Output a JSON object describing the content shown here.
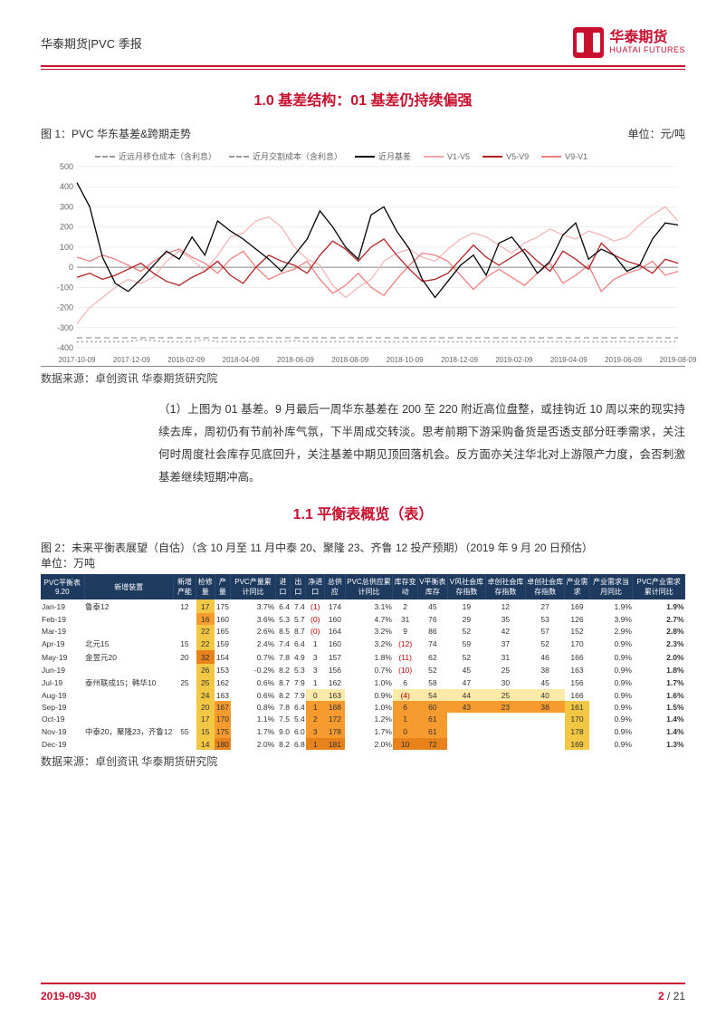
{
  "header": {
    "left": "华泰期货|PVC 季报",
    "logo_cn": "华泰期货",
    "logo_en": "HUATAI FUTURES"
  },
  "section1_title": "1.0 基差结构：01 基差仍持续偏强",
  "fig1": {
    "caption": "图 1：PVC 华东基差&跨期走势",
    "unit": "单位：元/吨",
    "source": "数据来源：卓创资讯 华泰期货研究院",
    "legend": [
      "近远月移仓成本（含利息）",
      "近月交割成本（含利息）",
      "近月基差",
      "V1-V5",
      "V5-V9",
      "V9-V1"
    ],
    "legend_colors": [
      "#999999",
      "#999999",
      "#000000",
      "#f2a6a6",
      "#b22222",
      "#f08080"
    ],
    "legend_dash": [
      "6,4",
      "2,3",
      "0",
      "0",
      "0",
      "0"
    ],
    "ylim": [
      -400,
      500
    ],
    "yticks": [
      -400,
      -300,
      -200,
      -100,
      0,
      100,
      200,
      300,
      400,
      500
    ],
    "xlabels": [
      "2017-10-09",
      "2017-12-09",
      "2018-02-09",
      "2018-04-09",
      "2018-06-09",
      "2018-08-09",
      "2018-10-09",
      "2018-12-09",
      "2019-02-09",
      "2019-04-09",
      "2019-06-09",
      "2019-08-09"
    ],
    "grid_color": "#dddddd",
    "series": {
      "near_basis": {
        "color": "#000000",
        "data": [
          420,
          300,
          50,
          -80,
          -120,
          -60,
          10,
          80,
          40,
          150,
          60,
          230,
          180,
          140,
          90,
          40,
          -20,
          60,
          140,
          280,
          200,
          100,
          40,
          260,
          300,
          180,
          90,
          -60,
          -150,
          -70,
          10,
          60,
          -40,
          120,
          150,
          70,
          -30,
          30,
          160,
          220,
          40,
          90,
          60,
          -20,
          10,
          140,
          220,
          210
        ]
      },
      "v1v5": {
        "color": "#f4b6b6",
        "data": [
          -280,
          -200,
          -150,
          -100,
          -60,
          -80,
          -50,
          30,
          80,
          40,
          -20,
          60,
          150,
          170,
          230,
          250,
          200,
          100,
          40,
          10,
          -90,
          -150,
          -100,
          -60,
          30,
          70,
          90,
          50,
          30,
          90,
          140,
          170,
          150,
          110,
          70,
          120,
          150,
          190,
          160,
          140,
          180,
          160,
          130,
          150,
          210,
          260,
          300,
          230
        ]
      },
      "v5v9": {
        "color": "#b22222",
        "data": [
          -50,
          -30,
          -60,
          -40,
          -10,
          20,
          -30,
          -70,
          -90,
          -50,
          -20,
          30,
          -40,
          -80,
          0,
          60,
          30,
          10,
          -30,
          60,
          130,
          90,
          30,
          100,
          140,
          60,
          -10,
          -70,
          -60,
          -30,
          40,
          110,
          50,
          10,
          50,
          90,
          30,
          -20,
          80,
          40,
          -10,
          120,
          60,
          30,
          10,
          -30,
          40,
          20
        ]
      },
      "v9v1": {
        "color": "#f08080",
        "data": [
          50,
          30,
          60,
          40,
          10,
          -20,
          30,
          70,
          90,
          50,
          20,
          -30,
          40,
          80,
          0,
          -60,
          -30,
          -10,
          30,
          -60,
          -130,
          -90,
          -30,
          -100,
          -140,
          -60,
          10,
          70,
          60,
          30,
          -40,
          -110,
          -50,
          -10,
          -50,
          -90,
          -30,
          20,
          -80,
          -40,
          10,
          -120,
          -60,
          -30,
          -10,
          30,
          -40,
          -20
        ]
      },
      "cost1": {
        "color": "#999999",
        "dash": "6,4",
        "data": [
          -350,
          -350,
          -350,
          -350,
          -350,
          -350,
          -350,
          -350,
          -350,
          -350,
          -350,
          -350,
          -350,
          -350,
          -350,
          -350,
          -350,
          -350,
          -350,
          -350,
          -350,
          -350,
          -350,
          -350,
          -350,
          -350,
          -350,
          -350,
          -350,
          -350,
          -350,
          -350,
          -350,
          -350,
          -350,
          -350,
          -350,
          -350,
          -350,
          -350,
          -350,
          -350,
          -350,
          -350,
          -350,
          -350,
          -350,
          -350
        ]
      },
      "cost2": {
        "color": "#999999",
        "dash": "2,3",
        "data": [
          -370,
          -370,
          -370,
          -370,
          -370,
          -360,
          -365,
          -370,
          -370,
          -370,
          -360,
          -370,
          -370,
          -370,
          -370,
          -370,
          -370,
          -365,
          -370,
          -370,
          -370,
          -370,
          -370,
          -370,
          -370,
          -370,
          -370,
          -370,
          -370,
          -370,
          -370,
          -370,
          -370,
          -370,
          -370,
          -370,
          -370,
          -370,
          -370,
          -370,
          -370,
          -370,
          -370,
          -370,
          -370,
          -370,
          -370,
          -370
        ]
      }
    }
  },
  "body1": "（1）上图为 01 基差。9 月最后一周华东基差在 200 至 220 附近高位盘整，或挂钩近 10 周以来的现实持续去库，周初仍有节前补库气氛，下半周成交转淡。思考前期下游采购备货是否透支部分旺季需求，关注何时周度社会库存见底回升，关注基差中期见顶回落机会。反方面亦关注华北对上游限产力度，会否刺激基差继续短期冲高。",
  "section2_title": "1.1 平衡表概览（表）",
  "fig2": {
    "caption": "图 2：未来平衡表展望（自估）（含 10 月至 11 月中泰 20、聚隆 23、齐鲁 12 投产预期）（2019 年 9 月 20 日预估）",
    "unit": "单位：万吨",
    "source": "数据来源：卓创资讯 华泰期货研究院",
    "columns": [
      "PVC平衡表 9.20",
      "新增装置",
      "新增产能",
      "检修量",
      "产量",
      "PVC产量累计同比",
      "进口",
      "出口",
      "净进口",
      "总供应",
      "PVC总供应累计同比",
      "库存变动",
      "V平衡表库存",
      "V风社会库存指数",
      "卓创社会库存指数",
      "卓创社会库存指数",
      "产业需求",
      "产业需求当月同比",
      "PVC产业需求累计同比"
    ],
    "rows": [
      {
        "m": "Jan-19",
        "dev": "鲁泰12",
        "cap": "12",
        "maint": "17",
        "maint_c": "y",
        "out": "175",
        "out_pct": "3.7%",
        "imp": "6.4",
        "exp": "7.4",
        "net": "(1)",
        "net_c": "r",
        "supply": "174",
        "supply_pct": "3.1%",
        "inv": "2",
        "bal": "45",
        "idx1": "19",
        "idx2": "12",
        "idx3": "27",
        "dem": "169",
        "dm": "1.9%",
        "cum": "1.9%"
      },
      {
        "m": "Feb-19",
        "dev": "",
        "cap": "",
        "maint": "16",
        "maint_c": "o",
        "out": "160",
        "out_pct": "3.6%",
        "imp": "5.3",
        "exp": "5.7",
        "net": "(0)",
        "net_c": "r",
        "supply": "160",
        "supply_pct": "4.7%",
        "inv": "31",
        "bal": "76",
        "idx1": "29",
        "idx2": "35",
        "idx3": "53",
        "dem": "126",
        "dm": "3.9%",
        "cum": "2.7%"
      },
      {
        "m": "Mar-19",
        "dev": "",
        "cap": "",
        "maint": "22",
        "maint_c": "y",
        "out": "165",
        "out_pct": "2.6%",
        "imp": "8.5",
        "exp": "8.7",
        "net": "(0)",
        "net_c": "r",
        "supply": "164",
        "supply_pct": "3.2%",
        "inv": "9",
        "bal": "86",
        "idx1": "52",
        "idx2": "42",
        "idx3": "57",
        "dem": "152",
        "dm": "2.9%",
        "cum": "2.8%"
      },
      {
        "m": "Apr-19",
        "dev": "北元15",
        "cap": "15",
        "maint": "22",
        "maint_c": "y",
        "out": "159",
        "out_pct": "2.4%",
        "imp": "7.4",
        "exp": "6.4",
        "net": "1",
        "supply": "160",
        "supply_pct": "3.2%",
        "inv": "(12)",
        "inv_c": "r",
        "bal": "74",
        "idx1": "59",
        "idx2": "37",
        "idx3": "52",
        "dem": "170",
        "dm": "0.9%",
        "cum": "2.3%"
      },
      {
        "m": "May-19",
        "dev": "金昱元20",
        "cap": "20",
        "maint": "32",
        "maint_c": "do",
        "out": "154",
        "out_pct": "0.7%",
        "imp": "7.8",
        "exp": "4.9",
        "net": "3",
        "supply": "157",
        "supply_pct": "1.8%",
        "inv": "(11)",
        "inv_c": "r",
        "bal": "62",
        "idx1": "52",
        "idx2": "31",
        "idx3": "46",
        "dem": "166",
        "dm": "0.9%",
        "cum": "2.0%"
      },
      {
        "m": "Jun-19",
        "dev": "",
        "cap": "",
        "maint": "26",
        "maint_c": "y",
        "out": "153",
        "out_pct": "-0.2%",
        "imp": "8.2",
        "exp": "5.3",
        "net": "3",
        "supply": "156",
        "supply_pct": "0.7%",
        "inv": "(10)",
        "inv_c": "r",
        "bal": "52",
        "idx1": "45",
        "idx2": "25",
        "idx3": "38",
        "dem": "163",
        "dm": "0.9%",
        "cum": "1.8%"
      },
      {
        "m": "Jul-19",
        "dev": "泰州联成15；韩华10",
        "cap": "25",
        "maint": "25",
        "maint_c": "y",
        "out": "162",
        "out_pct": "0.6%",
        "imp": "8.7",
        "exp": "7.9",
        "net": "1",
        "supply": "162",
        "supply_pct": "1.0%",
        "inv": "6",
        "bal": "58",
        "idx1": "47",
        "idx2": "30",
        "idx3": "45",
        "dem": "156",
        "dm": "0.9%",
        "cum": "1.7%"
      },
      {
        "m": "Aug-19",
        "dev": "",
        "cap": "",
        "maint": "24",
        "maint_c": "y",
        "out": "163",
        "out_pct": "0.6%",
        "imp": "8.2",
        "exp": "7.9",
        "net": "0",
        "net_hl": "ly",
        "supply": "163",
        "supply_hl": "ly",
        "supply_pct": "0.9%",
        "inv": "(4)",
        "inv_c": "r",
        "inv_hl": "ly",
        "bal": "54",
        "bal_hl": "ly",
        "idx1": "44",
        "idx1_hl": "ly",
        "idx2": "25",
        "idx2_hl": "ly",
        "idx3": "40",
        "idx3_hl": "ly",
        "dem": "166",
        "dm": "0.9%",
        "cum": "1.6%"
      },
      {
        "m": "Sep-19",
        "dev": "",
        "cap": "",
        "maint": "20",
        "maint_c": "y",
        "out": "167",
        "out_hl": "o",
        "out_pct": "0.8%",
        "imp": "7.8",
        "exp": "6.4",
        "net": "1",
        "net_hl": "o",
        "supply": "168",
        "supply_hl": "o",
        "supply_pct": "1.0%",
        "inv": "6",
        "inv_hl": "o",
        "bal": "60",
        "bal_hl": "o",
        "idx1": "43",
        "idx1_hl": "o",
        "idx2": "23",
        "idx2_hl": "o",
        "idx3": "38",
        "idx3_hl": "o",
        "dem": "161",
        "dem_hl": "y",
        "dm": "0.9%",
        "cum": "1.5%"
      },
      {
        "m": "Oct-19",
        "dev": "",
        "cap": "",
        "maint": "17",
        "maint_c": "y",
        "out": "170",
        "out_hl": "o",
        "out_pct": "1.1%",
        "imp": "7.5",
        "exp": "5.4",
        "net": "2",
        "net_hl": "o",
        "supply": "172",
        "supply_hl": "o",
        "supply_pct": "1.2%",
        "inv": "1",
        "inv_hl": "o",
        "bal": "61",
        "bal_hl": "o",
        "idx1": "",
        "idx2": "",
        "idx3": "",
        "dem": "170",
        "dem_hl": "y",
        "dm": "0.9%",
        "cum": "1.4%"
      },
      {
        "m": "Nov-19",
        "dev": "中泰20，聚隆23，齐鲁12",
        "cap": "55",
        "maint": "15",
        "maint_c": "y",
        "out": "175",
        "out_hl": "o",
        "out_pct": "1.7%",
        "imp": "9.0",
        "exp": "6.0",
        "net": "3",
        "net_hl": "o",
        "supply": "178",
        "supply_hl": "o",
        "supply_pct": "1.7%",
        "inv": "0",
        "inv_hl": "o",
        "bal": "61",
        "bal_hl": "o",
        "idx1": "",
        "idx2": "",
        "idx3": "",
        "dem": "178",
        "dem_hl": "y",
        "dm": "0.9%",
        "cum": "1.4%"
      },
      {
        "m": "Dec-19",
        "dev": "",
        "cap": "",
        "maint": "14",
        "maint_c": "y",
        "out": "180",
        "out_hl": "do",
        "out_pct": "2.0%",
        "imp": "8.2",
        "exp": "6.8",
        "net": "1",
        "net_hl": "do",
        "supply": "181",
        "supply_hl": "do",
        "supply_pct": "2.0%",
        "inv": "10",
        "inv_hl": "do",
        "bal": "72",
        "bal_hl": "do",
        "idx1": "",
        "idx2": "",
        "idx3": "",
        "dem": "169",
        "dem_hl": "y",
        "dm": "0.9%",
        "cum": "1.3%"
      }
    ]
  },
  "footer": {
    "date": "2019-09-30",
    "page_cur": "2",
    "page_sep": " / ",
    "page_total": "21"
  }
}
